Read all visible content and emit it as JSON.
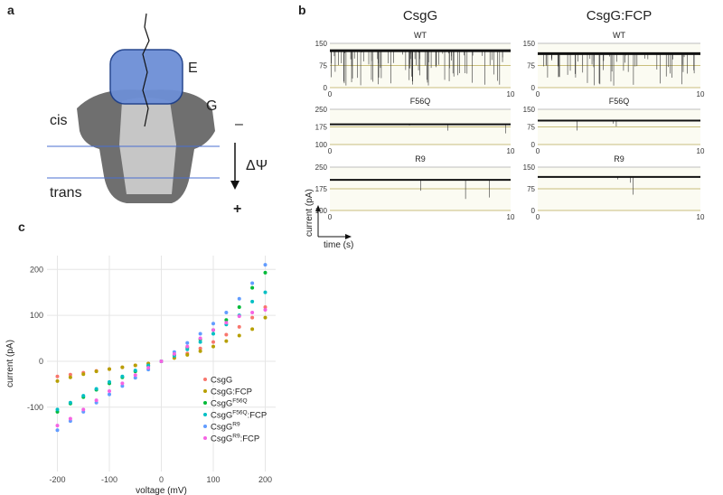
{
  "panel_a": {
    "label": "a",
    "E": "E",
    "G": "G",
    "cis": "cis",
    "trans": "trans",
    "minus": "–",
    "potential": "ΔΨ",
    "plus": "+"
  },
  "panel_b": {
    "label": "b",
    "ylabel": "current (pA)",
    "xlabel": "time (s)",
    "columns": [
      {
        "title": "CsgG",
        "traces": [
          {
            "name": "WT",
            "ylim": [
              0,
              150
            ],
            "yticks": [
              0,
              75,
              150
            ],
            "xlim": [
              0,
              10
            ],
            "xticks": [
              0,
              10
            ],
            "level": 125
          },
          {
            "name": "F56Q",
            "ylim": [
              100,
              250
            ],
            "yticks": [
              100,
              175,
              250
            ],
            "xlim": [
              0,
              10
            ],
            "xticks": [
              0,
              10
            ],
            "level": 186
          },
          {
            "name": "R9",
            "ylim": [
              100,
              250
            ],
            "yticks": [
              100,
              175,
              250
            ],
            "xlim": [
              0,
              10
            ],
            "xticks": [
              0,
              10
            ],
            "level": 206
          }
        ]
      },
      {
        "title": "CsgG:FCP",
        "traces": [
          {
            "name": "WT",
            "ylim": [
              0,
              150
            ],
            "yticks": [
              0,
              75,
              150
            ],
            "xlim": [
              0,
              10
            ],
            "xticks": [
              0,
              10
            ],
            "level": 115
          },
          {
            "name": "F56Q",
            "ylim": [
              0,
              150
            ],
            "yticks": [
              0,
              75,
              150
            ],
            "xlim": [
              0,
              10
            ],
            "xticks": [
              0,
              10
            ],
            "level": 102
          },
          {
            "name": "R9",
            "ylim": [
              0,
              150
            ],
            "yticks": [
              0,
              75,
              150
            ],
            "xlim": [
              0,
              10
            ],
            "xticks": [
              0,
              10
            ],
            "level": 116
          }
        ]
      }
    ]
  },
  "chart_data": {
    "type": "scatter",
    "label": "c",
    "xlabel": "voltage (mV)",
    "ylabel": "current (pA)",
    "x": [
      -200,
      -175,
      -150,
      -125,
      -100,
      -75,
      -50,
      -25,
      0,
      25,
      50,
      75,
      100,
      125,
      150,
      175,
      200
    ],
    "xlim": [
      -220,
      220
    ],
    "xticks": [
      -200,
      -100,
      0,
      100,
      200
    ],
    "ylim": [
      -240,
      230
    ],
    "yticks": [
      -100,
      0,
      100,
      200
    ],
    "grid": true,
    "legend": "lower right",
    "series": [
      {
        "name": "CsgG",
        "color": "#F8766D",
        "values": [
          -33,
          -29,
          -25,
          -21,
          -17,
          -13,
          -9,
          -5,
          0,
          8,
          17,
          28,
          42,
          58,
          75,
          95,
          118
        ]
      },
      {
        "name": "CsgG",
        "suffix": ":FCP",
        "color": "#B79F00",
        "values": [
          -43,
          -35,
          -28,
          -22,
          -17,
          -13,
          -9,
          -5,
          0,
          7,
          14,
          22,
          32,
          44,
          56,
          70,
          95
        ]
      },
      {
        "name": "CsgG",
        "superscript": "F56Q",
        "color": "#00BA38",
        "values": [
          -110,
          -92,
          -78,
          -62,
          -48,
          -35,
          -22,
          -10,
          0,
          14,
          30,
          48,
          68,
          90,
          118,
          160,
          193
        ]
      },
      {
        "name": "CsgG",
        "superscript": "F56Q",
        "suffix": ":FCP",
        "color": "#00BFC4",
        "values": [
          -105,
          -90,
          -75,
          -60,
          -45,
          -33,
          -20,
          -9,
          0,
          12,
          26,
          42,
          60,
          80,
          100,
          130,
          150
        ]
      },
      {
        "name": "CsgG",
        "superscript": "R9",
        "color": "#619CFF",
        "values": [
          -150,
          -130,
          -110,
          -90,
          -72,
          -54,
          -36,
          -18,
          0,
          20,
          40,
          60,
          82,
          106,
          136,
          170,
          210
        ]
      },
      {
        "name": "CsgG",
        "superscript": "R9",
        "suffix": ":FCP",
        "color": "#F564E3",
        "values": [
          -140,
          -125,
          -105,
          -85,
          -65,
          -48,
          -30,
          -14,
          0,
          16,
          32,
          50,
          68,
          84,
          98,
          106,
          112
        ]
      }
    ]
  }
}
